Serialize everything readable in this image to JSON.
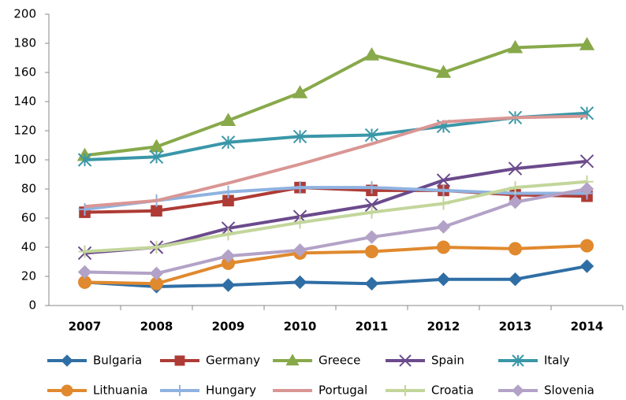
{
  "chart_data": {
    "type": "line",
    "categories": [
      "2007",
      "2008",
      "2009",
      "2010",
      "2011",
      "2012",
      "2013",
      "2014"
    ],
    "ylim": [
      0,
      200
    ],
    "yticks": [
      0,
      20,
      40,
      60,
      80,
      100,
      120,
      140,
      160,
      180,
      200
    ],
    "grid": false,
    "legend": "bottom",
    "series": [
      {
        "name": "Bulgaria",
        "color": "#2f6ea5",
        "marker": "diamond",
        "values": [
          16,
          13,
          14,
          16,
          15,
          18,
          18,
          27
        ]
      },
      {
        "name": "Germany",
        "color": "#ae3b35",
        "marker": "square",
        "values": [
          64,
          65,
          72,
          81,
          79,
          79,
          76,
          75
        ]
      },
      {
        "name": "Greece",
        "color": "#88a94a",
        "marker": "triangle",
        "values": [
          103,
          109,
          127,
          146,
          172,
          160,
          177,
          179
        ]
      },
      {
        "name": "Spain",
        "color": "#6b4a8c",
        "marker": "x",
        "values": [
          36,
          40,
          53,
          61,
          69,
          86,
          94,
          99
        ]
      },
      {
        "name": "Italy",
        "color": "#3a97a8",
        "marker": "asterisk",
        "values": [
          100,
          102,
          112,
          116,
          117,
          123,
          129,
          132
        ]
      },
      {
        "name": "Lithuania",
        "color": "#e0892e",
        "marker": "circle",
        "values": [
          16,
          15,
          29,
          36,
          37,
          40,
          39,
          41
        ]
      },
      {
        "name": "Hungary",
        "color": "#8fb2e0",
        "marker": "plus",
        "values": [
          66,
          72,
          78,
          81,
          81,
          79,
          77,
          77
        ]
      },
      {
        "name": "Portugal",
        "color": "#d99694",
        "marker": "none",
        "values": [
          68,
          72,
          84,
          97,
          111,
          126,
          129,
          130
        ]
      },
      {
        "name": "Croatia",
        "color": "#c3d69b",
        "marker": "plus",
        "values": [
          37,
          40,
          49,
          57,
          64,
          70,
          81,
          85
        ]
      },
      {
        "name": "Slovenia",
        "color": "#b3a2c7",
        "marker": "diamond",
        "values": [
          23,
          22,
          34,
          38,
          47,
          54,
          71,
          80
        ]
      }
    ]
  }
}
